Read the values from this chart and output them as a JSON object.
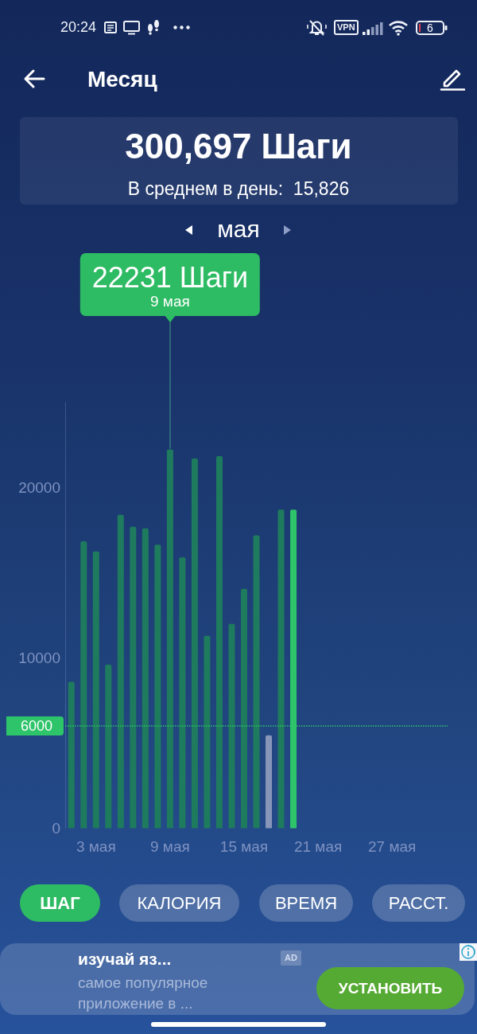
{
  "chart_data": {
    "type": "bar",
    "title": "300,697 Шаги",
    "subtitle": "В среднем в день:  15,826",
    "categories": [
      null,
      null,
      "3 мая",
      null,
      null,
      null,
      null,
      null,
      "9 мая",
      null,
      null,
      null,
      null,
      null,
      "15 мая",
      null,
      null,
      null,
      null,
      null,
      "21 мая",
      null,
      null,
      null,
      null,
      null,
      "27 мая",
      null,
      null,
      null,
      null
    ],
    "values": [
      8600,
      16850,
      16250,
      9600,
      18400,
      17700,
      17600,
      16650,
      22231,
      15900,
      21700,
      11300,
      21850,
      12000,
      14050,
      17200,
      5450,
      18700,
      18700,
      null,
      null,
      null,
      null,
      null,
      null,
      null,
      null,
      null,
      null,
      null,
      null
    ],
    "colors": [
      "#1e7b5e",
      "#1e7b5e",
      "#1e7b5e",
      "#1e7b5e",
      "#1e7b5e",
      "#1e7b5e",
      "#1e7b5e",
      "#1e7b5e",
      "#1e7b5e",
      "#1e7b5e",
      "#1e7b5e",
      "#1e7b5e",
      "#1e7b5e",
      "#1e7b5e",
      "#1e7b5e",
      "#1e7b5e",
      "#8796b8",
      "#1e7b5e",
      "#2ec46a",
      null,
      null,
      null,
      null,
      null,
      null,
      null,
      null,
      null,
      null,
      null,
      null
    ],
    "ylim": [
      0,
      25000
    ],
    "yticks": [
      0,
      10000,
      20000
    ],
    "grid": false,
    "ref_lines": [
      {
        "axis": "y",
        "value": 6000,
        "label": "6000",
        "color": "#2ec46a",
        "line_style": "dotted"
      }
    ],
    "annotations": [
      "20:24",
      "VPN",
      "6",
      "Месяц",
      "мая",
      {
        "text": "22231 Шаги\n9 мая",
        "x": "9 мая",
        "y": 22231
      },
      "ШАГ",
      "КАЛОРИЯ",
      "ВРЕМЯ",
      "РАССТ.",
      "изучай яз...",
      "AD",
      "самое популярное приложение в ...",
      "УСТАНОВИТЬ"
    ]
  }
}
